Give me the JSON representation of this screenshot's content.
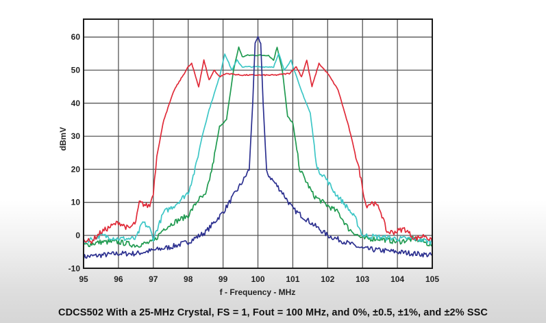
{
  "chart_data": {
    "type": "line",
    "title": "",
    "caption": "CDCS502 With a 25-MHz Crystal, FS = 1, Fout = 100 MHz, and 0%, ±0.5, ±1%, and ±2% SSC",
    "xlabel": "f - Frequency - MHz",
    "ylabel": "dBmV",
    "xlim": [
      95,
      105
    ],
    "ylim": [
      -10,
      65
    ],
    "xticks": [
      95,
      96,
      97,
      98,
      99,
      100,
      101,
      102,
      103,
      104,
      105
    ],
    "yticks": [
      -10,
      0,
      10,
      20,
      30,
      40,
      50,
      60
    ],
    "grid": true,
    "legend": null,
    "series": [
      {
        "name": "0% SSC",
        "color": "#2b2f8f",
        "x": [
          95.0,
          95.5,
          96.0,
          96.5,
          97.0,
          97.5,
          98.0,
          98.5,
          99.0,
          99.3,
          99.6,
          99.75,
          99.85,
          99.92,
          100.0,
          100.08,
          100.15,
          100.25,
          100.4,
          100.7,
          101.0,
          101.5,
          102.0,
          102.5,
          103.0,
          103.5,
          104.0,
          104.5,
          105.0
        ],
        "y": [
          -6.5,
          -6,
          -5.5,
          -5.5,
          -4.5,
          -3.5,
          -2,
          1,
          7,
          12,
          17,
          20,
          40,
          58,
          60,
          58,
          40,
          19,
          17,
          13,
          8,
          4,
          0,
          -2,
          -4,
          -4.5,
          -5,
          -5.5,
          -6
        ]
      },
      {
        "name": "±0.5% SSC",
        "color": "#1f9a4f",
        "x": [
          95.0,
          95.5,
          96.0,
          96.5,
          97.0,
          97.3,
          97.6,
          98.0,
          98.3,
          98.5,
          98.7,
          98.9,
          99.1,
          99.3,
          99.45,
          99.55,
          99.7,
          100.0,
          100.3,
          100.45,
          100.55,
          100.7,
          100.85,
          101.0,
          101.2,
          101.6,
          102.0,
          102.3,
          102.6,
          103.0,
          103.5,
          104.0,
          104.5,
          105.0
        ],
        "y": [
          -3,
          -2,
          -2,
          -3,
          -2,
          2,
          4,
          6,
          11,
          12,
          21,
          33,
          35,
          50,
          57,
          54,
          54.5,
          54.5,
          54.5,
          53,
          57,
          50,
          36,
          34,
          20,
          12,
          9,
          7,
          2,
          -1,
          -1,
          -2,
          -1,
          -3
        ]
      },
      {
        "name": "±1% SSC",
        "color": "#3cc6c6",
        "x": [
          95.0,
          95.5,
          96.0,
          96.5,
          96.7,
          96.9,
          97.0,
          97.3,
          97.6,
          98.0,
          98.2,
          98.4,
          98.6,
          98.9,
          99.05,
          99.25,
          99.4,
          99.55,
          100.0,
          100.45,
          100.6,
          100.75,
          100.95,
          101.2,
          101.5,
          101.7,
          101.9,
          102.2,
          102.6,
          102.8,
          103.0,
          103.5,
          104.0,
          104.5,
          105.0
        ],
        "y": [
          -2,
          0,
          -1,
          -1,
          4,
          2,
          -1,
          7,
          9,
          13,
          20,
          30,
          38,
          48,
          55,
          50,
          53,
          51,
          51,
          51,
          55,
          50,
          53,
          45,
          37,
          20,
          18,
          13,
          8,
          5,
          0,
          -0.5,
          -1,
          -1,
          -2
        ]
      },
      {
        "name": "±2% SSC",
        "color": "#e02a38",
        "x": [
          95.0,
          95.2,
          95.5,
          96.0,
          96.3,
          96.5,
          96.6,
          96.8,
          96.9,
          97.0,
          97.1,
          97.3,
          97.6,
          98.0,
          98.1,
          98.3,
          98.45,
          98.6,
          98.75,
          98.9,
          99.1,
          99.5,
          100.0,
          100.5,
          100.9,
          101.1,
          101.25,
          101.4,
          101.55,
          101.75,
          102.0,
          102.3,
          102.6,
          102.9,
          103.1,
          103.3,
          103.5,
          103.7,
          103.9,
          104.2,
          104.5,
          104.8,
          105.0
        ],
        "y": [
          -1,
          -2,
          1,
          4,
          2,
          4,
          10,
          9,
          9,
          13,
          24,
          35,
          44,
          51,
          52,
          45,
          53,
          47,
          50,
          48,
          49,
          48.5,
          48.5,
          48.5,
          49,
          51,
          48,
          53,
          45,
          52,
          49,
          44,
          33,
          20,
          9,
          10,
          8,
          1,
          1,
          2,
          -1,
          0,
          -2
        ]
      }
    ]
  },
  "plot": {
    "x_tick_labels": [
      "95",
      "96",
      "97",
      "98",
      "99",
      "100",
      "101",
      "102",
      "103",
      "104",
      "105"
    ],
    "y_tick_labels": [
      "-10",
      "0",
      "10",
      "20",
      "30",
      "40",
      "50",
      "60"
    ]
  }
}
